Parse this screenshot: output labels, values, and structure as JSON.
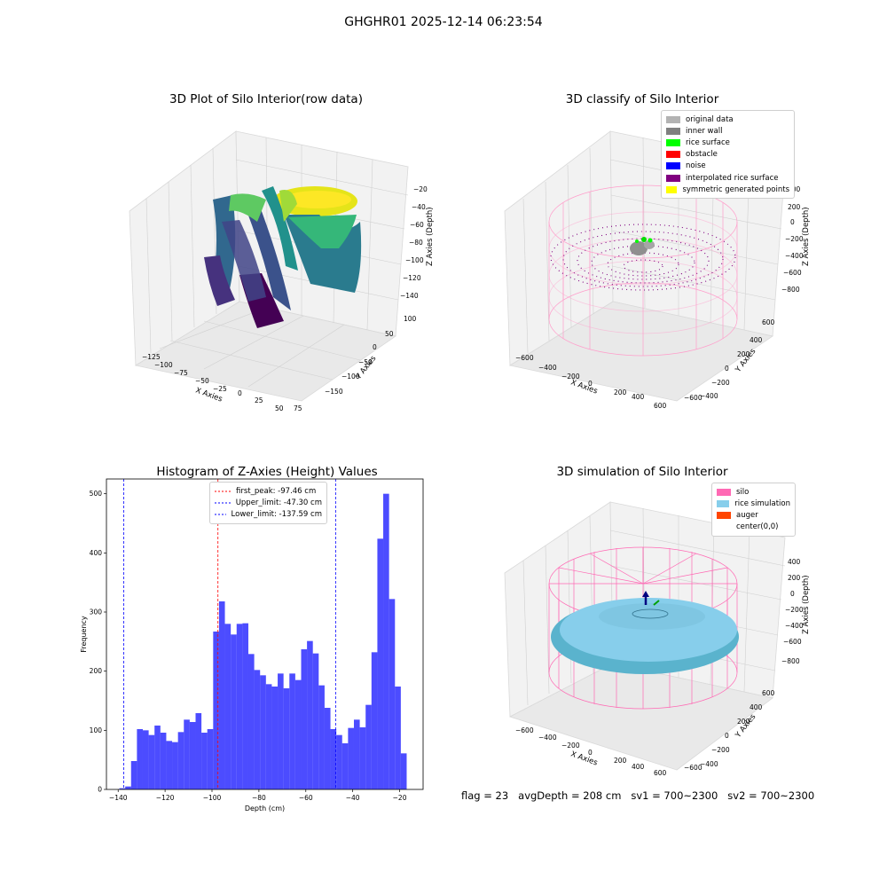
{
  "figure": {
    "suptitle": "GHGHR01 2025-12-14 06:23:54",
    "status_line": {
      "flag": "flag = 23",
      "avg_depth": "avgDepth = 208 cm",
      "sv1": "sv1 = 700~2300",
      "sv2": "sv2 = 700~2300"
    }
  },
  "panels": {
    "raw": {
      "title": "3D Plot of Silo Interior(row data)",
      "xlabel": "X Axies",
      "ylabel": "Y Axies",
      "zlabel": "Z Axies (Depth)",
      "xticks": [
        "−125",
        "−100",
        "−75",
        "−50",
        "−25",
        "0",
        "25",
        "50",
        "75"
      ],
      "yticks": [
        "100",
        "50",
        "0",
        "−50",
        "−100",
        "−150"
      ],
      "zticks": [
        "−20",
        "−40",
        "−60",
        "−80",
        "−100",
        "−120",
        "−140"
      ]
    },
    "classify": {
      "title": "3D classify of Silo Interior",
      "xlabel": "X Axies",
      "ylabel": "Y Axies",
      "zlabel": "Z Axies (Depth)",
      "xticks": [
        "−600",
        "−400",
        "−200",
        "0",
        "200",
        "400",
        "600"
      ],
      "yticks": [
        "600",
        "400",
        "200",
        "0",
        "−200",
        "−400",
        "−600"
      ],
      "zticks": [
        "400",
        "200",
        "0",
        "−200",
        "−400",
        "−600",
        "−800"
      ],
      "legend": [
        {
          "label": "original data",
          "color": "#b3b3b3"
        },
        {
          "label": "inner wall",
          "color": "#808080"
        },
        {
          "label": "rice surface",
          "color": "#00ff00"
        },
        {
          "label": "obstacle",
          "color": "#ff0000"
        },
        {
          "label": "noise",
          "color": "#0000ff"
        },
        {
          "label": "interpolated rice surface",
          "color": "#800080"
        },
        {
          "label": "symmetric generated points",
          "color": "#ffff00"
        }
      ]
    },
    "simulation": {
      "title": "3D simulation of Silo Interior",
      "xlabel": "X Axies",
      "ylabel": "Y Axies",
      "zlabel": "Z Axies (Depth)",
      "xticks": [
        "−600",
        "−400",
        "−200",
        "0",
        "200",
        "400",
        "600"
      ],
      "yticks": [
        "600",
        "400",
        "200",
        "0",
        "−200",
        "−400",
        "−600"
      ],
      "zticks": [
        "400",
        "200",
        "0",
        "−200",
        "−400",
        "−600",
        "−800"
      ],
      "legend": [
        {
          "label": "silo",
          "color": "#ff69b4"
        },
        {
          "label": "rice simulation",
          "color": "#87ceeb"
        },
        {
          "label": "auger",
          "color": "#ff4500"
        },
        {
          "label": "center(0,0)",
          "color": "#ffffff"
        }
      ]
    }
  },
  "chart_data": [
    {
      "type": "bar",
      "title": "Histogram of Z-Axies (Height) Values",
      "xlabel": "Depth (cm)",
      "ylabel": "Frequency",
      "xlim": [
        -145,
        -10
      ],
      "ylim": [
        0,
        525
      ],
      "xticks": [
        -140,
        -120,
        -100,
        -80,
        -60,
        -40,
        -20
      ],
      "yticks": [
        0,
        100,
        200,
        300,
        400,
        500
      ],
      "bin_start": -139.5,
      "bin_width": 2.5,
      "values": [
        2,
        5,
        48,
        102,
        100,
        92,
        108,
        96,
        82,
        80,
        97,
        118,
        114,
        129,
        96,
        102,
        267,
        318,
        280,
        262,
        280,
        281,
        229,
        202,
        193,
        178,
        174,
        196,
        171,
        196,
        185,
        237,
        251,
        230,
        176,
        138,
        102,
        92,
        78,
        104,
        118,
        105,
        143,
        232,
        424,
        500,
        322,
        174,
        61
      ],
      "bar_color": "#0000ff",
      "bar_alpha": 0.7,
      "vlines": [
        {
          "label": "first_peak: -97.46 cm",
          "x": -97.46,
          "color": "#ff0000"
        },
        {
          "label": "Upper_limit: -47.30 cm",
          "x": -47.3,
          "color": "#0000ff"
        },
        {
          "label": "Lower_limit: -137.59 cm",
          "x": -137.59,
          "color": "#0000ff"
        }
      ],
      "legend_position": "upper center"
    }
  ]
}
